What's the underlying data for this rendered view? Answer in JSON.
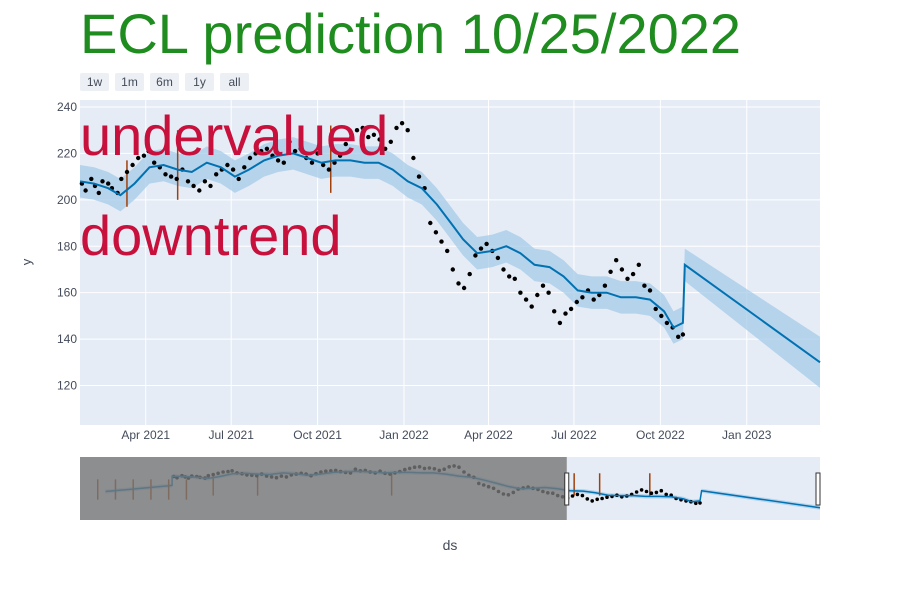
{
  "title": "ECL prediction 10/25/2022",
  "range_selector": [
    {
      "label": "1w"
    },
    {
      "label": "1m"
    },
    {
      "label": "6m"
    },
    {
      "label": "1y"
    },
    {
      "label": "all"
    }
  ],
  "annotations": [
    "undervalued",
    "downtrend"
  ],
  "colors": {
    "title": "#1e8c1e",
    "annotation": "#c8103c",
    "forecast_line": "#0072b2",
    "uncertainty_band": "#a6cbe8",
    "actual_points": "#000000",
    "changepoint_lines": "#a0400a",
    "plot_background": "#e5ecf6"
  },
  "chart_data": {
    "type": "line",
    "xlabel": "ds",
    "ylabel": "y",
    "x_range": [
      "2021-01-21",
      "2023-03-20"
    ],
    "ylim": [
      103,
      243
    ],
    "grid": true,
    "x_ticks": [
      {
        "date": "2021-04-01",
        "label": "Apr 2021"
      },
      {
        "date": "2021-07-01",
        "label": "Jul 2021"
      },
      {
        "date": "2021-10-01",
        "label": "Oct 2021"
      },
      {
        "date": "2022-01-01",
        "label": "Jan 2022"
      },
      {
        "date": "2022-04-01",
        "label": "Apr 2022"
      },
      {
        "date": "2022-07-01",
        "label": "Jul 2022"
      },
      {
        "date": "2022-10-01",
        "label": "Oct 2022"
      },
      {
        "date": "2023-01-01",
        "label": "Jan 2023"
      }
    ],
    "y_ticks": [
      120,
      140,
      160,
      180,
      200,
      220,
      240
    ],
    "forecast": {
      "name": "yhat",
      "dates": [
        "2021-01-21",
        "2021-02-05",
        "2021-02-20",
        "2021-03-05",
        "2021-03-20",
        "2021-04-05",
        "2021-04-20",
        "2021-05-05",
        "2021-05-20",
        "2021-06-05",
        "2021-06-20",
        "2021-07-05",
        "2021-07-20",
        "2021-08-05",
        "2021-08-20",
        "2021-09-05",
        "2021-09-20",
        "2021-10-05",
        "2021-10-20",
        "2021-11-05",
        "2021-11-20",
        "2021-12-05",
        "2021-12-20",
        "2022-01-05",
        "2022-01-20",
        "2022-02-05",
        "2022-02-20",
        "2022-03-05",
        "2022-03-20",
        "2022-04-05",
        "2022-04-20",
        "2022-05-05",
        "2022-05-20",
        "2022-06-05",
        "2022-06-20",
        "2022-07-05",
        "2022-07-20",
        "2022-08-05",
        "2022-08-20",
        "2022-09-05",
        "2022-09-20",
        "2022-10-05",
        "2022-10-15",
        "2022-10-25",
        "2022-10-27",
        "2023-03-20"
      ],
      "values": [
        208,
        207,
        205,
        202,
        207,
        214,
        215,
        213,
        212,
        216,
        214,
        210,
        213,
        217,
        219,
        220,
        218,
        216,
        217,
        217,
        216,
        216,
        213,
        208,
        205,
        198,
        190,
        183,
        177,
        178,
        180,
        177,
        172,
        171,
        167,
        161,
        160,
        160,
        158,
        158,
        157,
        152,
        145,
        147,
        172,
        130
      ]
    },
    "uncertainty": {
      "name": "yhat_lower / yhat_upper",
      "half_width_start": 7,
      "half_width_end": 11
    },
    "actual": {
      "name": "y",
      "dates": [
        "2021-01-23",
        "2021-01-27",
        "2021-02-02",
        "2021-02-06",
        "2021-02-10",
        "2021-02-14",
        "2021-02-20",
        "2021-02-24",
        "2021-03-02",
        "2021-03-06",
        "2021-03-12",
        "2021-03-18",
        "2021-03-24",
        "2021-03-30",
        "2021-04-04",
        "2021-04-10",
        "2021-04-16",
        "2021-04-22",
        "2021-04-28",
        "2021-05-04",
        "2021-05-10",
        "2021-05-16",
        "2021-05-22",
        "2021-05-28",
        "2021-06-03",
        "2021-06-09",
        "2021-06-15",
        "2021-06-21",
        "2021-06-27",
        "2021-07-03",
        "2021-07-09",
        "2021-07-15",
        "2021-07-21",
        "2021-07-27",
        "2021-08-02",
        "2021-08-08",
        "2021-08-14",
        "2021-08-20",
        "2021-08-26",
        "2021-09-01",
        "2021-09-07",
        "2021-09-13",
        "2021-09-19",
        "2021-09-25",
        "2021-10-01",
        "2021-10-07",
        "2021-10-13",
        "2021-10-19",
        "2021-10-25",
        "2021-10-31",
        "2021-11-06",
        "2021-11-12",
        "2021-11-18",
        "2021-11-24",
        "2021-11-30",
        "2021-12-06",
        "2021-12-12",
        "2021-12-18",
        "2021-12-24",
        "2021-12-30",
        "2022-01-05",
        "2022-01-11",
        "2022-01-17",
        "2022-01-23",
        "2022-01-29",
        "2022-02-04",
        "2022-02-10",
        "2022-02-16",
        "2022-02-22",
        "2022-02-28",
        "2022-03-06",
        "2022-03-12",
        "2022-03-18",
        "2022-03-24",
        "2022-03-30",
        "2022-04-05",
        "2022-04-11",
        "2022-04-17",
        "2022-04-23",
        "2022-04-29",
        "2022-05-05",
        "2022-05-11",
        "2022-05-17",
        "2022-05-23",
        "2022-05-29",
        "2022-06-04",
        "2022-06-10",
        "2022-06-16",
        "2022-06-22",
        "2022-06-28",
        "2022-07-04",
        "2022-07-10",
        "2022-07-16",
        "2022-07-22",
        "2022-07-28",
        "2022-08-03",
        "2022-08-09",
        "2022-08-15",
        "2022-08-21",
        "2022-08-27",
        "2022-09-02",
        "2022-09-08",
        "2022-09-14",
        "2022-09-20",
        "2022-09-26",
        "2022-10-02",
        "2022-10-08",
        "2022-10-14",
        "2022-10-20",
        "2022-10-25"
      ],
      "values": [
        207,
        204,
        209,
        206,
        203,
        208,
        207,
        205,
        203,
        209,
        212,
        215,
        218,
        219,
        221,
        216,
        214,
        211,
        210,
        209,
        213,
        208,
        206,
        204,
        208,
        206,
        211,
        213,
        215,
        213,
        209,
        214,
        218,
        220,
        221,
        222,
        219,
        217,
        216,
        225,
        221,
        222,
        218,
        216,
        220,
        215,
        213,
        216,
        219,
        224,
        227,
        230,
        231,
        227,
        228,
        226,
        222,
        225,
        231,
        233,
        230,
        218,
        210,
        205,
        190,
        186,
        182,
        178,
        170,
        164,
        162,
        168,
        176,
        179,
        181,
        178,
        175,
        170,
        167,
        166,
        160,
        157,
        154,
        159,
        163,
        160,
        152,
        147,
        151,
        153,
        156,
        158,
        161,
        157,
        159,
        163,
        169,
        174,
        170,
        166,
        168,
        172,
        163,
        161,
        153,
        150,
        147,
        145,
        141,
        142
      ]
    },
    "changepoints": [
      {
        "date": "2021-03-12",
        "low": 197,
        "high": 217
      },
      {
        "date": "2021-05-05",
        "low": 200,
        "high": 230
      },
      {
        "date": "2021-10-15",
        "low": 203,
        "high": 232
      }
    ]
  },
  "range_slider": {
    "window_start": "2022-05-16",
    "window_end": "2023-03-20",
    "changepoints": [
      "2021-03-12",
      "2021-05-05",
      "2021-10-15",
      "2022-05-25",
      "2022-06-25",
      "2022-08-25"
    ],
    "extra_changepoints_left": 6
  }
}
